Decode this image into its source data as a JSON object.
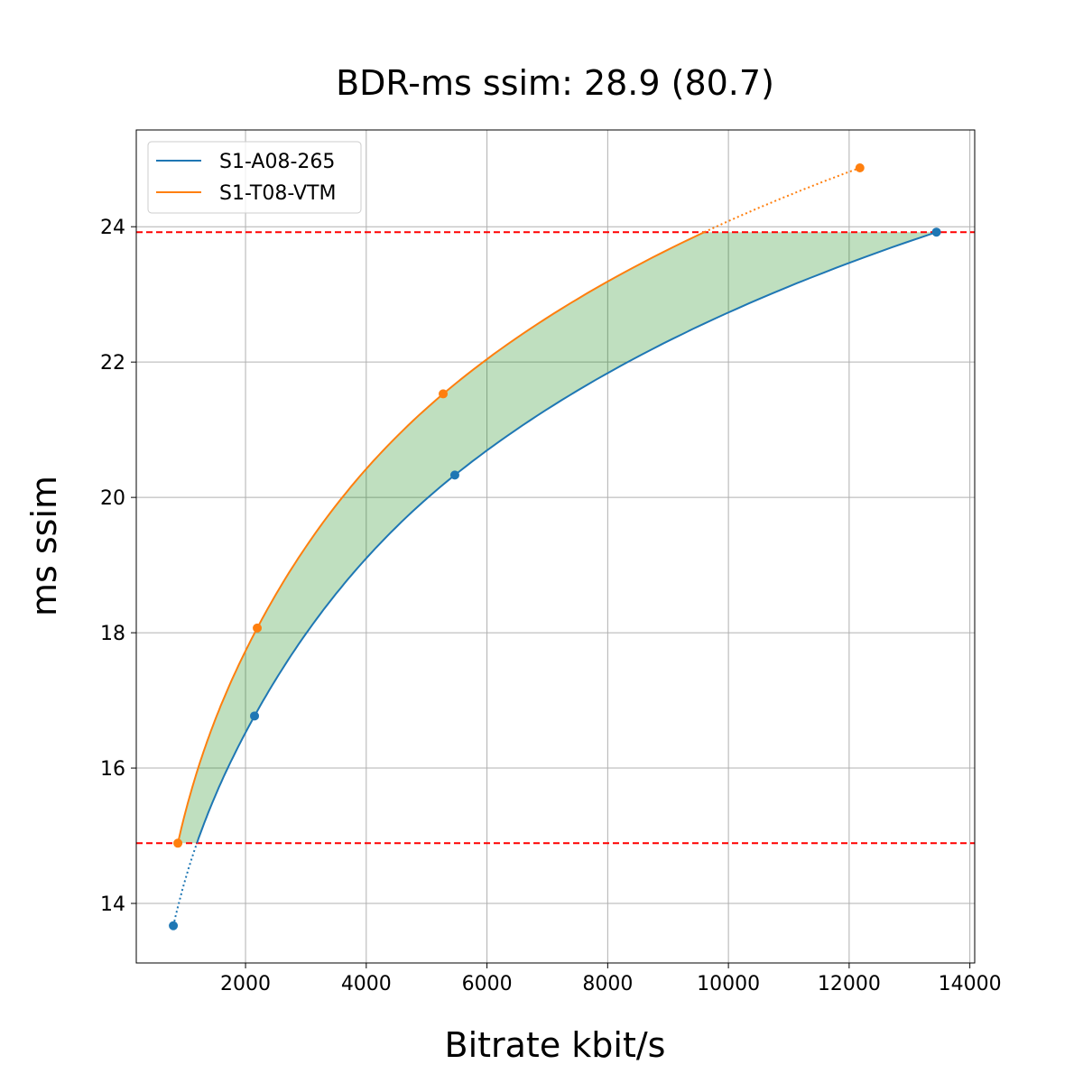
{
  "chart_data": {
    "type": "line",
    "title": "BDR-ms ssim: 28.9 (80.7)",
    "xlabel": "Bitrate kbit/s",
    "ylabel": "ms ssim",
    "xlim": [
      190,
      14080
    ],
    "ylim": [
      13.12,
      25.43
    ],
    "xticks": [
      2000,
      4000,
      6000,
      8000,
      10000,
      12000,
      14000
    ],
    "yticks": [
      14,
      16,
      18,
      20,
      22,
      24
    ],
    "grid": true,
    "legend_position": "top-left",
    "series": [
      {
        "name": "S1-A08-265",
        "color": "#1f77b4",
        "x": [
          804,
          2149,
          5467,
          13446
        ],
        "y": [
          13.67,
          16.77,
          20.33,
          23.92
        ]
      },
      {
        "name": "S1-T08-VTM",
        "color": "#ff7f0e",
        "x": [
          879,
          2194,
          5274,
          12178
        ],
        "y": [
          14.89,
          18.07,
          21.53,
          24.87
        ]
      }
    ],
    "reference_lines": {
      "y": [
        14.89,
        23.92
      ],
      "color": "#ff0000",
      "style": "dashed"
    },
    "fill_between": {
      "color": "#008000",
      "opacity": 0.25,
      "y_range": [
        14.89,
        23.92
      ]
    }
  }
}
